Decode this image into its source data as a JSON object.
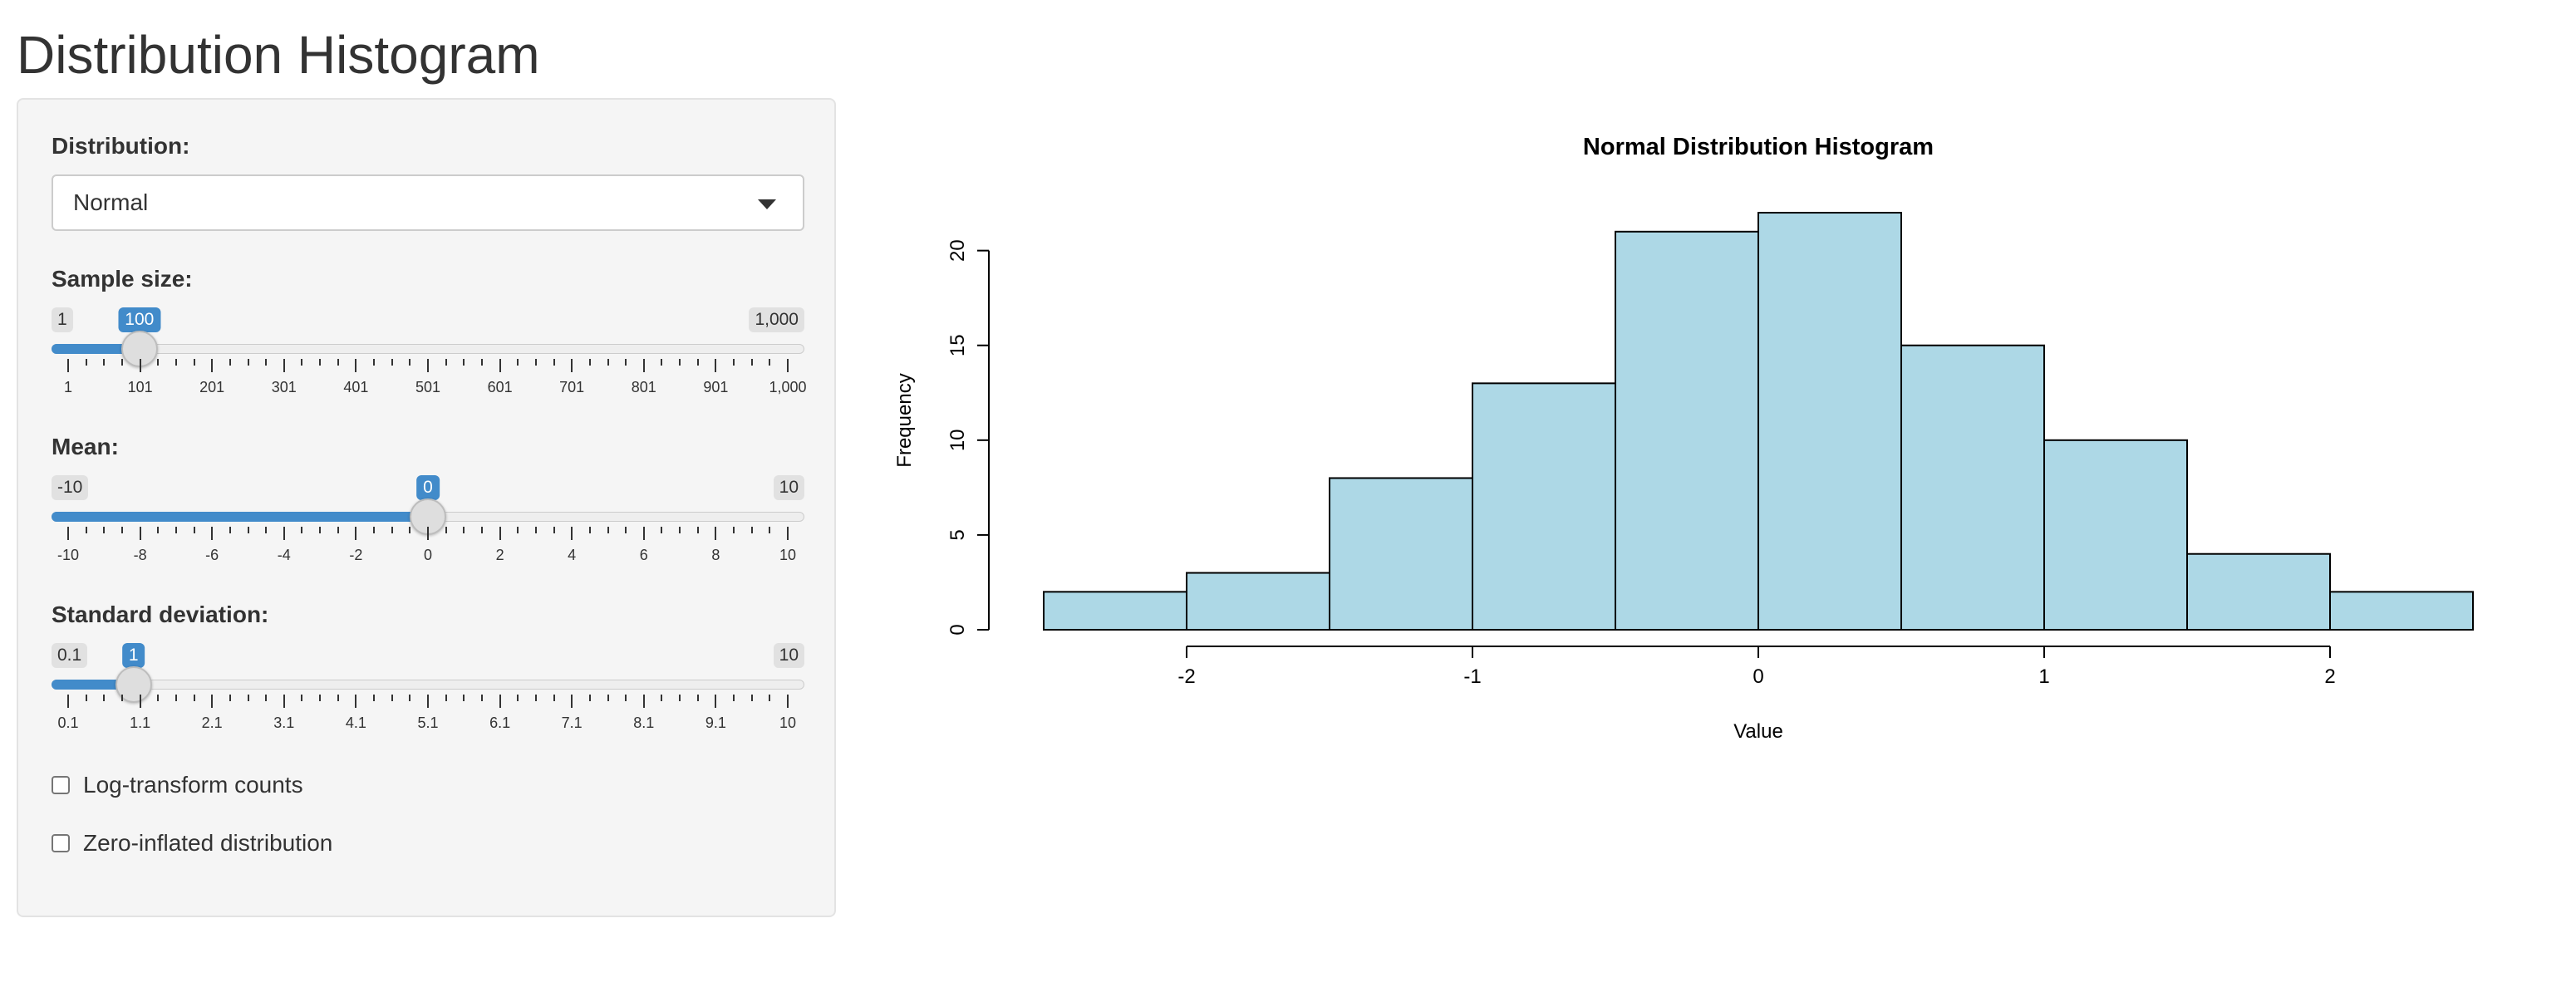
{
  "page": {
    "title": "Distribution Histogram"
  },
  "sidebar": {
    "distribution": {
      "label": "Distribution:",
      "value": "Normal"
    },
    "sample_size": {
      "label": "Sample size:",
      "min": 1,
      "max": 1000,
      "value": 100,
      "min_label": "1",
      "max_label": "1,000",
      "value_label": "100",
      "ticks": [
        "1",
        "101",
        "201",
        "301",
        "401",
        "501",
        "601",
        "701",
        "801",
        "901",
        "1,000"
      ]
    },
    "mean": {
      "label": "Mean:",
      "min": -10,
      "max": 10,
      "value": 0,
      "min_label": "-10",
      "max_label": "10",
      "value_label": "0",
      "ticks": [
        "-10",
        "-8",
        "-6",
        "-4",
        "-2",
        "0",
        "2",
        "4",
        "6",
        "8",
        "10"
      ]
    },
    "sd": {
      "label": "Standard deviation:",
      "min": 0.1,
      "max": 10,
      "value": 1,
      "min_label": "0.1",
      "max_label": "10",
      "value_label": "1",
      "ticks": [
        "0.1",
        "1.1",
        "2.1",
        "3.1",
        "4.1",
        "5.1",
        "6.1",
        "7.1",
        "8.1",
        "9.1",
        "10"
      ]
    },
    "log_transform": {
      "label": "Log-transform counts",
      "checked": false
    },
    "zero_inflated": {
      "label": "Zero-inflated distribution",
      "checked": false
    }
  },
  "colors": {
    "accent": "#428bca",
    "bar_fill": "#add8e6",
    "bar_stroke": "#000000"
  },
  "chart_data": {
    "type": "bar",
    "title": "Normal Distribution Histogram",
    "xlabel": "Value",
    "ylabel": "Frequency",
    "bins": [
      {
        "start": -2.5,
        "end": -2.0,
        "count": 2
      },
      {
        "start": -2.0,
        "end": -1.5,
        "count": 3
      },
      {
        "start": -1.5,
        "end": -1.0,
        "count": 8
      },
      {
        "start": -1.0,
        "end": -0.5,
        "count": 13
      },
      {
        "start": -0.5,
        "end": 0.0,
        "count": 21
      },
      {
        "start": 0.0,
        "end": 0.5,
        "count": 22
      },
      {
        "start": 0.5,
        "end": 1.0,
        "count": 15
      },
      {
        "start": 1.0,
        "end": 1.5,
        "count": 10
      },
      {
        "start": 1.5,
        "end": 2.0,
        "count": 4
      },
      {
        "start": 2.0,
        "end": 2.5,
        "count": 2
      }
    ],
    "xlim": [
      -2.5,
      2.5
    ],
    "ylim": [
      0,
      22
    ],
    "x_ticks": [
      -2,
      -1,
      0,
      1,
      2
    ],
    "x_tick_labels": [
      "-2",
      "-1",
      "0",
      "1",
      "2"
    ],
    "y_ticks": [
      0,
      5,
      10,
      15,
      20
    ],
    "y_tick_labels": [
      "0",
      "5",
      "10",
      "15",
      "20"
    ],
    "grid": false,
    "legend": "none"
  }
}
